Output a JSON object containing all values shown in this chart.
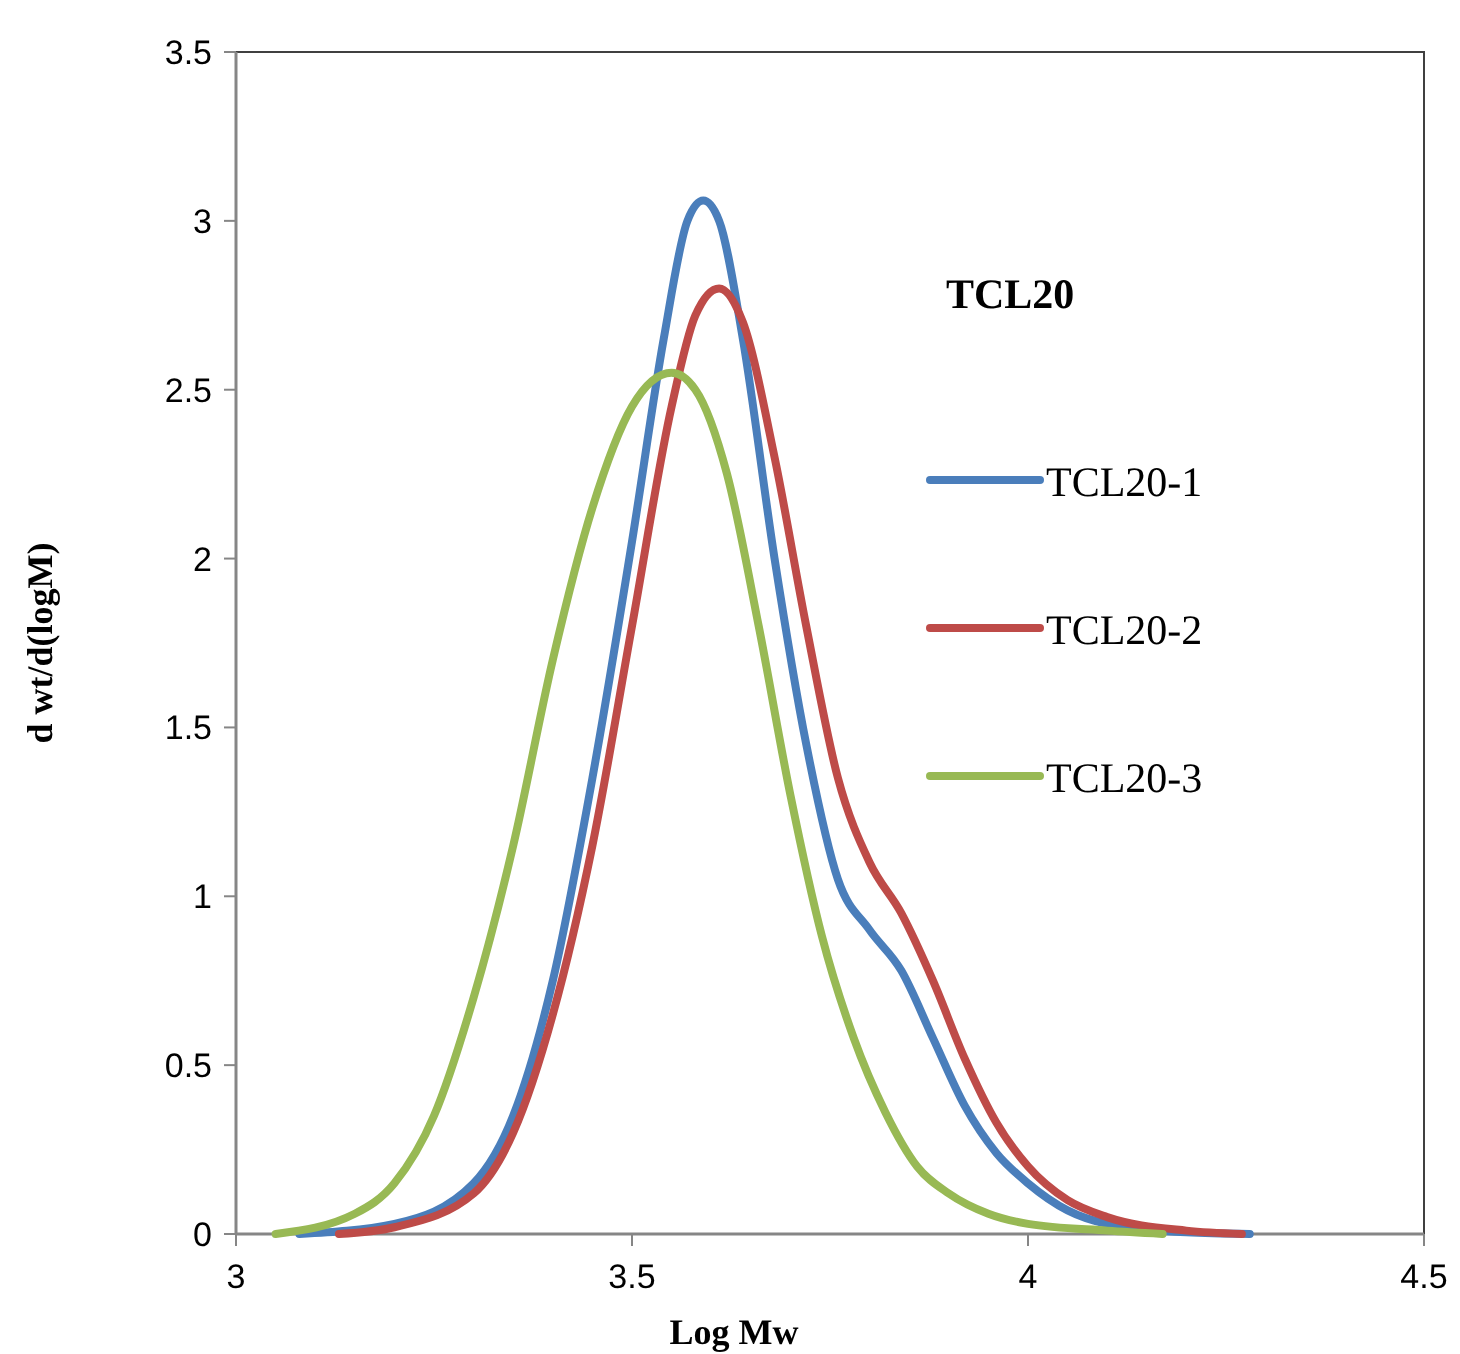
{
  "chart_data": {
    "type": "line",
    "xlabel": "Log Mw",
    "ylabel": "d wt/d(logM)",
    "legend_title": "TCL20",
    "xlim": [
      3,
      4.5
    ],
    "xticks": [
      3,
      3.5,
      4,
      4.5
    ],
    "ylim": [
      0,
      3.5
    ],
    "yticks": [
      0,
      0.5,
      1,
      1.5,
      2,
      2.5,
      3,
      3.5
    ],
    "grid": false,
    "legend": "right",
    "marker": "none",
    "line_style": "solid",
    "series": [
      {
        "name": "TCL20-1",
        "color": "#4a7ebb",
        "x": [
          3.08,
          3.2,
          3.3,
          3.35,
          3.4,
          3.45,
          3.5,
          3.54,
          3.57,
          3.59,
          3.61,
          3.64,
          3.68,
          3.72,
          3.76,
          3.8,
          3.84,
          3.88,
          3.92,
          3.96,
          4.0,
          4.05,
          4.1,
          4.2,
          4.28
        ],
        "values": [
          0,
          0.03,
          0.15,
          0.35,
          0.75,
          1.35,
          2.05,
          2.65,
          3.0,
          3.06,
          3.0,
          2.65,
          2.0,
          1.45,
          1.05,
          0.9,
          0.78,
          0.58,
          0.38,
          0.24,
          0.15,
          0.07,
          0.03,
          0.005,
          0
        ]
      },
      {
        "name": "TCL20-2",
        "color": "#be4b48",
        "x": [
          3.13,
          3.2,
          3.3,
          3.35,
          3.4,
          3.45,
          3.5,
          3.55,
          3.58,
          3.61,
          3.64,
          3.68,
          3.72,
          3.76,
          3.8,
          3.84,
          3.88,
          3.92,
          3.96,
          4.0,
          4.05,
          4.1,
          4.2,
          4.27
        ],
        "values": [
          0,
          0.02,
          0.12,
          0.3,
          0.65,
          1.15,
          1.8,
          2.45,
          2.72,
          2.8,
          2.7,
          2.3,
          1.8,
          1.35,
          1.1,
          0.95,
          0.75,
          0.52,
          0.33,
          0.2,
          0.1,
          0.05,
          0.01,
          0
        ]
      },
      {
        "name": "TCL20-3",
        "color": "#98b954",
        "x": [
          3.05,
          3.15,
          3.2,
          3.25,
          3.3,
          3.35,
          3.4,
          3.45,
          3.5,
          3.55,
          3.58,
          3.62,
          3.66,
          3.7,
          3.74,
          3.78,
          3.82,
          3.86,
          3.9,
          3.95,
          4.0,
          4.1,
          4.17
        ],
        "values": [
          0,
          0.06,
          0.15,
          0.35,
          0.7,
          1.15,
          1.7,
          2.15,
          2.45,
          2.55,
          2.5,
          2.25,
          1.8,
          1.3,
          0.88,
          0.58,
          0.36,
          0.2,
          0.12,
          0.06,
          0.03,
          0.01,
          0
        ]
      }
    ]
  }
}
